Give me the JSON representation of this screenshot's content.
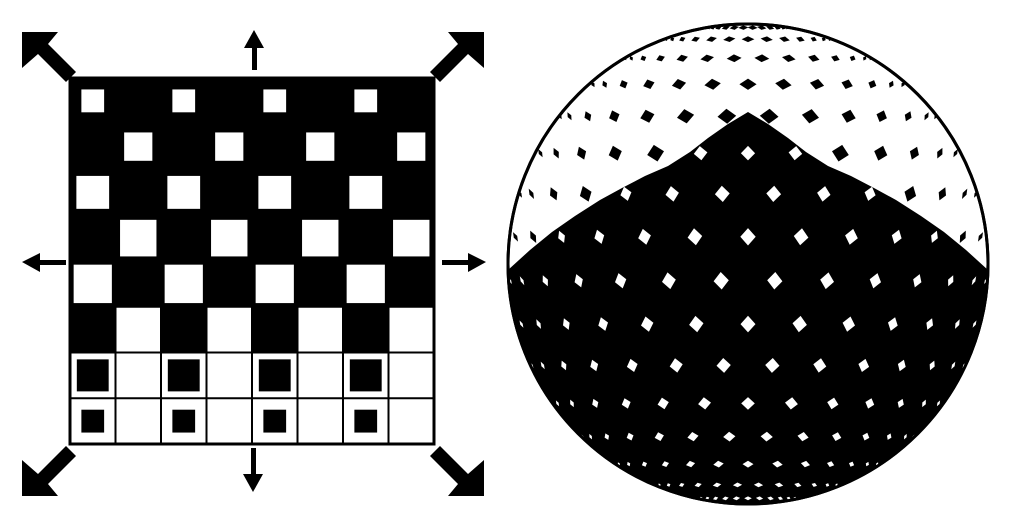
{
  "colors": {
    "ink": "#000000",
    "paper": "#ffffff"
  },
  "grid": {
    "rows": 8,
    "cols": 8,
    "row_patterns": [
      "black-cells-large-white-squares",
      "black-cells-large-white-squares",
      "black-cells-large-white-squares",
      "black-cells-large-white-squares",
      "mixed",
      "mixed",
      "white-cells-black-squares",
      "white-cells-small-black-squares"
    ]
  },
  "arrows": {
    "directions": [
      "up-left",
      "up",
      "up-right",
      "left",
      "right",
      "down-left",
      "down",
      "down-right"
    ]
  },
  "sphere": {
    "pattern": "diamond-tiles-projected-on-sphere"
  }
}
